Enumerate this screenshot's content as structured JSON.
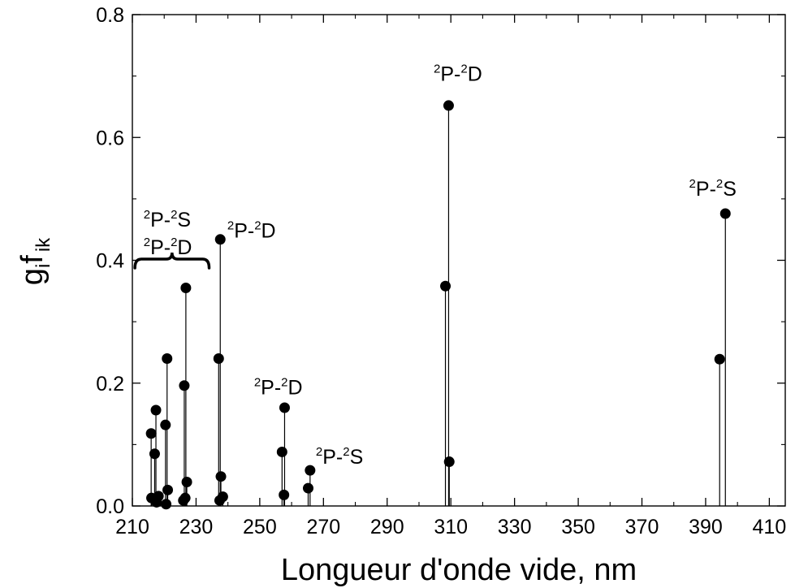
{
  "chart_data": {
    "type": "scatter",
    "style": "stem",
    "xlabel": "Longueur d'onde vide, nm",
    "ylabel": {
      "base": "g",
      "sub1": "i",
      "mid": "f",
      "sub2": "ik"
    },
    "xlim": [
      210,
      415
    ],
    "ylim": [
      0,
      0.8
    ],
    "xticks": [
      210,
      230,
      250,
      270,
      290,
      310,
      330,
      350,
      370,
      390,
      410
    ],
    "yticks": [
      0.0,
      0.2,
      0.4,
      0.6,
      0.8
    ],
    "ytick_labels": [
      "0.0",
      "0.2",
      "0.4",
      "0.6",
      "0.8"
    ],
    "x_minor_step": 10,
    "y_minor_step": 0.1,
    "points": [
      {
        "x": 215.9,
        "y": 0.118
      },
      {
        "x": 216.0,
        "y": 0.013
      },
      {
        "x": 217.0,
        "y": 0.085
      },
      {
        "x": 217.4,
        "y": 0.156
      },
      {
        "x": 217.6,
        "y": 0.006
      },
      {
        "x": 218.2,
        "y": 0.016
      },
      {
        "x": 220.4,
        "y": 0.132
      },
      {
        "x": 220.6,
        "y": 0.003
      },
      {
        "x": 220.9,
        "y": 0.24
      },
      {
        "x": 221.1,
        "y": 0.026
      },
      {
        "x": 226.0,
        "y": 0.009
      },
      {
        "x": 226.3,
        "y": 0.196
      },
      {
        "x": 226.6,
        "y": 0.013
      },
      {
        "x": 226.8,
        "y": 0.355
      },
      {
        "x": 227.1,
        "y": 0.039
      },
      {
        "x": 237.1,
        "y": 0.24
      },
      {
        "x": 237.4,
        "y": 0.009
      },
      {
        "x": 237.6,
        "y": 0.434
      },
      {
        "x": 237.8,
        "y": 0.048
      },
      {
        "x": 238.4,
        "y": 0.015
      },
      {
        "x": 257.0,
        "y": 0.088
      },
      {
        "x": 257.6,
        "y": 0.018
      },
      {
        "x": 257.8,
        "y": 0.16
      },
      {
        "x": 265.2,
        "y": 0.029
      },
      {
        "x": 265.8,
        "y": 0.058
      },
      {
        "x": 308.3,
        "y": 0.358
      },
      {
        "x": 309.3,
        "y": 0.652
      },
      {
        "x": 309.5,
        "y": 0.072
      },
      {
        "x": 394.4,
        "y": 0.239
      },
      {
        "x": 396.2,
        "y": 0.476
      }
    ],
    "annotations": [
      {
        "id": "ann-1",
        "lines": [
          [
            {
              "sup": "2"
            },
            {
              "t": "P-"
            },
            {
              "sup": "2"
            },
            {
              "t": "S"
            }
          ],
          [
            {
              "sup": "2"
            },
            {
              "t": "P-"
            },
            {
              "sup": "2"
            },
            {
              "t": "D"
            }
          ]
        ],
        "x": 213.5,
        "y": 0.455,
        "line_gap": 0.045
      },
      {
        "id": "ann-2",
        "lines": [
          [
            {
              "sup": "2"
            },
            {
              "t": "P-"
            },
            {
              "sup": "2"
            },
            {
              "t": "D"
            }
          ]
        ],
        "x": 239.8,
        "y": 0.437
      },
      {
        "id": "ann-3",
        "lines": [
          [
            {
              "sup": "2"
            },
            {
              "t": "P-"
            },
            {
              "sup": "2"
            },
            {
              "t": "D"
            }
          ]
        ],
        "x": 304.6,
        "y": 0.692
      },
      {
        "id": "ann-4",
        "lines": [
          [
            {
              "sup": "2"
            },
            {
              "t": "P-"
            },
            {
              "sup": "2"
            },
            {
              "t": "S"
            }
          ]
        ],
        "x": 384.8,
        "y": 0.505
      },
      {
        "id": "ann-5",
        "lines": [
          [
            {
              "sup": "2"
            },
            {
              "t": "P-"
            },
            {
              "sup": "2"
            },
            {
              "t": "D"
            }
          ]
        ],
        "x": 248.2,
        "y": 0.182
      },
      {
        "id": "ann-6",
        "lines": [
          [
            {
              "sup": "2"
            },
            {
              "t": "P-"
            },
            {
              "sup": "2"
            },
            {
              "t": "S"
            }
          ]
        ],
        "x": 267.6,
        "y": 0.069
      }
    ],
    "brace": {
      "x0": 210.8,
      "x1": 234.1,
      "y": 0.402
    },
    "grid": false,
    "legend": "none"
  }
}
